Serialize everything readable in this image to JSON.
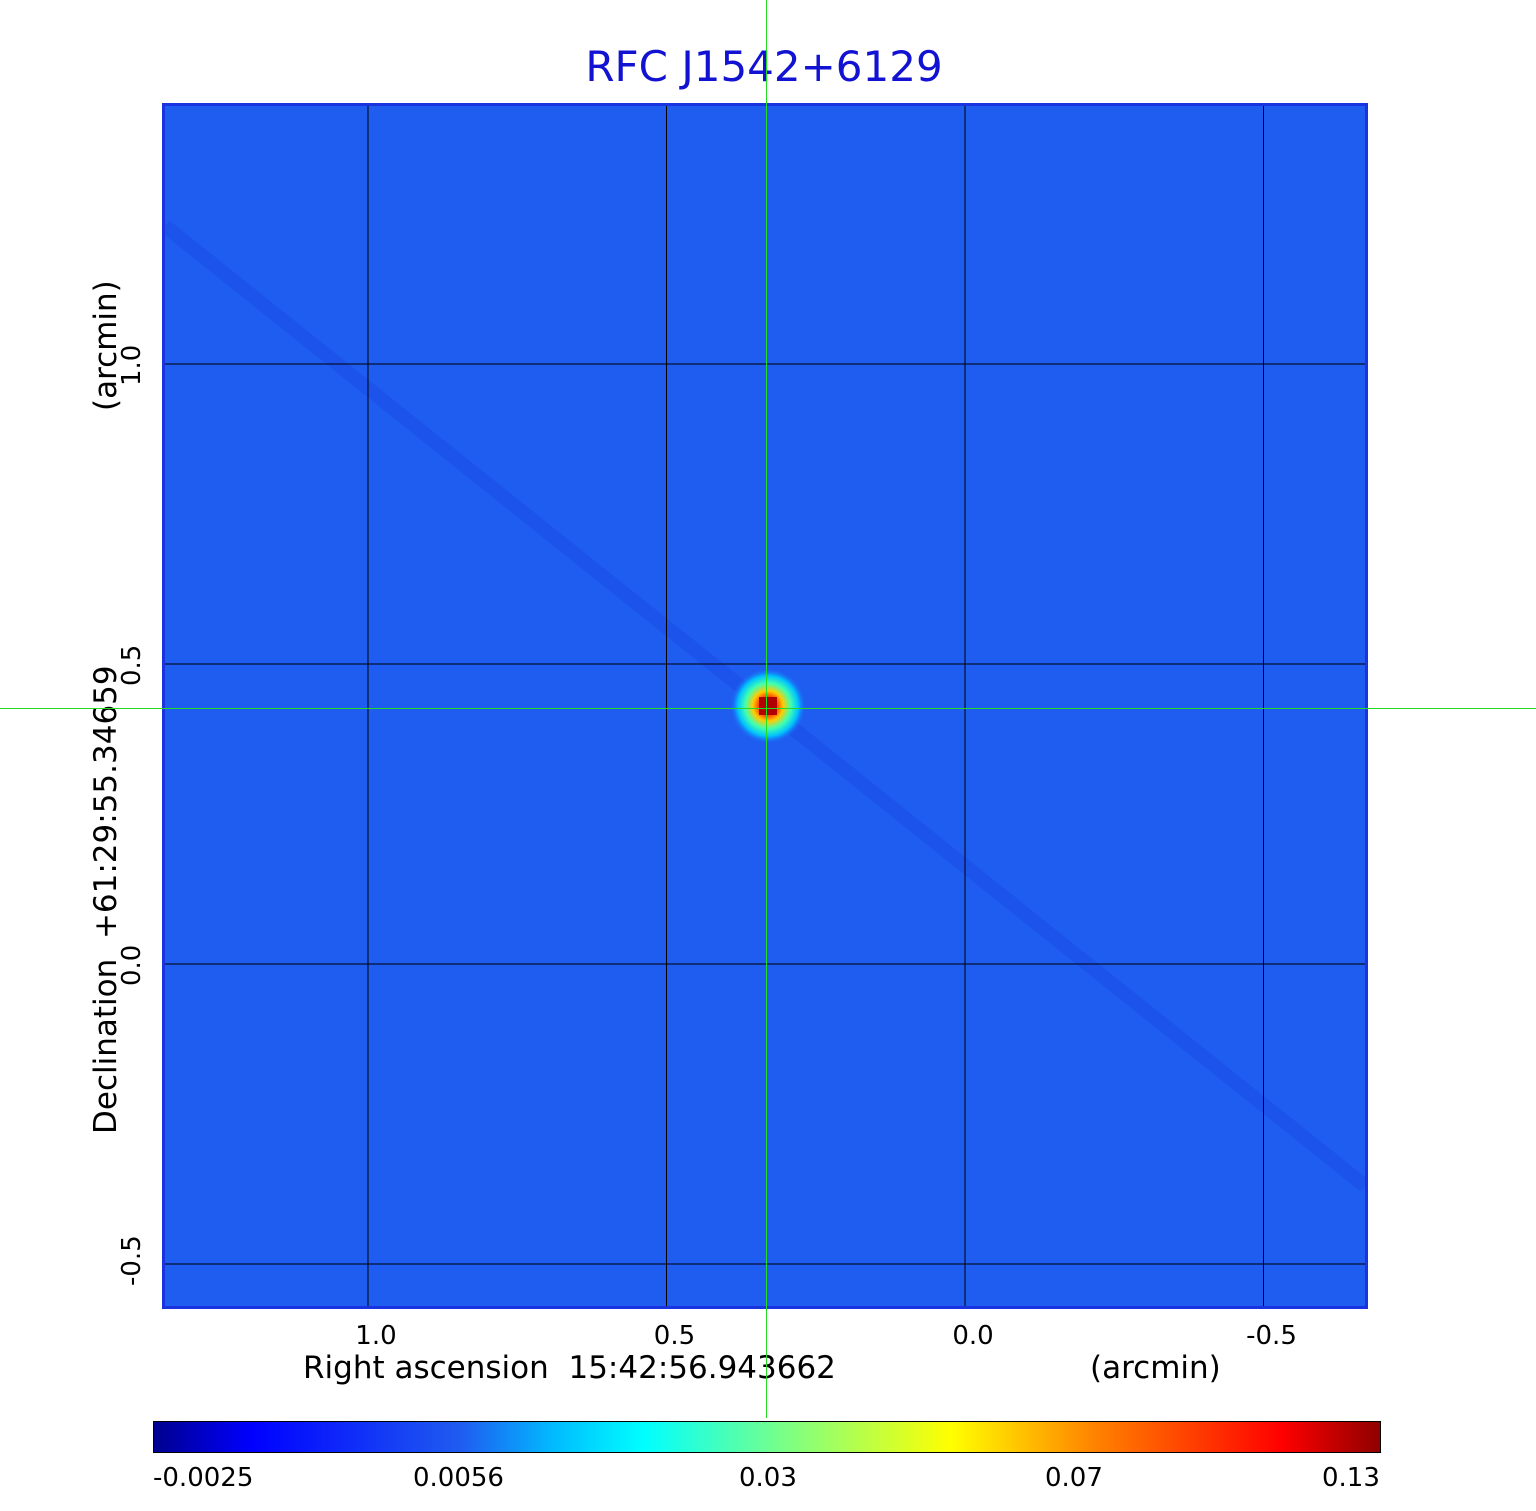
{
  "chart_data": {
    "type": "heatmap",
    "title": "RFC J1542+6129",
    "xlabel": "Right ascension  15:42:56.943662",
    "xunit": "(arcmin)",
    "ylabel": "Declination  +61:29:55.34659",
    "yunit": "(arcmin)",
    "x_ticks": [
      "1.0",
      "0.5",
      "0.0",
      "-0.5"
    ],
    "x_tick_values": [
      1.0,
      0.5,
      0.0,
      -0.5
    ],
    "y_ticks": [
      "1.0",
      "0.5",
      "0.0",
      "-0.5"
    ],
    "y_tick_values": [
      1.0,
      0.5,
      0.0,
      -0.5
    ],
    "xlim": [
      1.34,
      -0.67
    ],
    "ylim": [
      -0.57,
      1.43
    ],
    "grid": true,
    "source_peak": {
      "x": 0.33,
      "y": 0.43
    },
    "crosshair": {
      "x": 0.33,
      "y": 0.43
    },
    "colorbar": {
      "ticks": [
        "-0.0025",
        "0.0056",
        "0.03",
        "0.07",
        "0.13"
      ],
      "colormap": "jet"
    }
  }
}
